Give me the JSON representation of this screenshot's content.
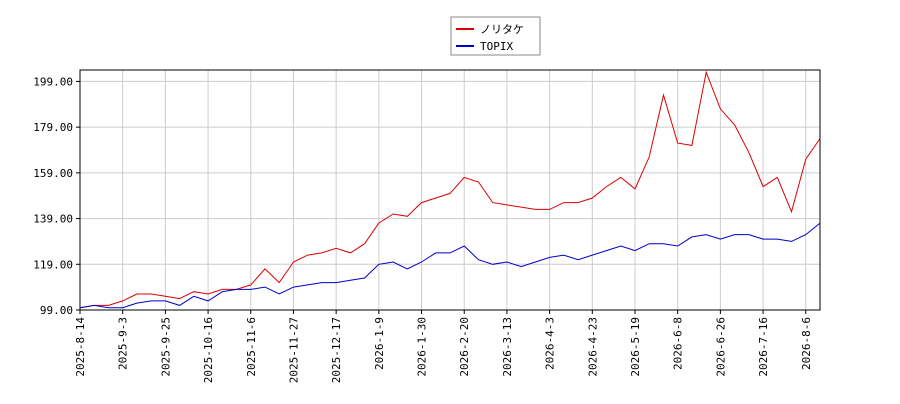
{
  "chart_data": {
    "type": "line",
    "categories": [
      "2025-8-14",
      null,
      null,
      "2025-9-3",
      null,
      null,
      "2025-9-25",
      null,
      null,
      "2025-10-16",
      null,
      null,
      "2025-11-6",
      null,
      null,
      "2025-11-27",
      null,
      null,
      "2025-12-17",
      null,
      null,
      "2026-1-9",
      null,
      null,
      "2026-1-30",
      null,
      null,
      "2026-2-20",
      null,
      null,
      "2026-3-13",
      null,
      null,
      "2026-4-3",
      null,
      null,
      "2026-4-23",
      null,
      null,
      "2026-5-19",
      null,
      null,
      "2026-6-8",
      null,
      null,
      "2026-6-26",
      null,
      null,
      "2026-7-16",
      null,
      null,
      "2026-8-6",
      null
    ],
    "series": [
      {
        "name": "ノリタケ",
        "color": "#dd0000",
        "values": [
          100,
          101,
          101,
          103,
          106,
          106,
          105,
          104,
          107,
          106,
          108,
          108,
          110,
          117,
          111,
          120,
          123,
          124,
          126,
          124,
          128,
          137,
          141,
          140,
          146,
          148,
          150,
          157,
          155,
          146,
          145,
          144,
          143,
          143,
          146,
          146,
          148,
          153,
          157,
          152,
          166,
          193,
          172,
          171,
          203,
          187,
          180,
          168,
          153,
          157,
          142,
          165,
          174
        ]
      },
      {
        "name": "TOPIX",
        "color": "#0000cc",
        "values": [
          100,
          101,
          100,
          100,
          102,
          103,
          103,
          101,
          105,
          103,
          107,
          108,
          108,
          109,
          106,
          109,
          110,
          111,
          111,
          112,
          113,
          119,
          120,
          117,
          120,
          124,
          124,
          127,
          121,
          119,
          120,
          118,
          120,
          122,
          123,
          121,
          123,
          125,
          127,
          125,
          128,
          128,
          127,
          131,
          132,
          130,
          132,
          132,
          130,
          130,
          129,
          132,
          137
        ]
      }
    ],
    "ylim": [
      99,
      204
    ],
    "yticks": [
      {
        "value": 99,
        "label": "99.00"
      },
      {
        "value": 119,
        "label": "119.00"
      },
      {
        "value": 139,
        "label": "139.00"
      },
      {
        "value": 159,
        "label": "159.00"
      },
      {
        "value": 179,
        "label": "179.00"
      },
      {
        "value": 199,
        "label": "199.00"
      }
    ],
    "grid": true,
    "legend": "top"
  }
}
